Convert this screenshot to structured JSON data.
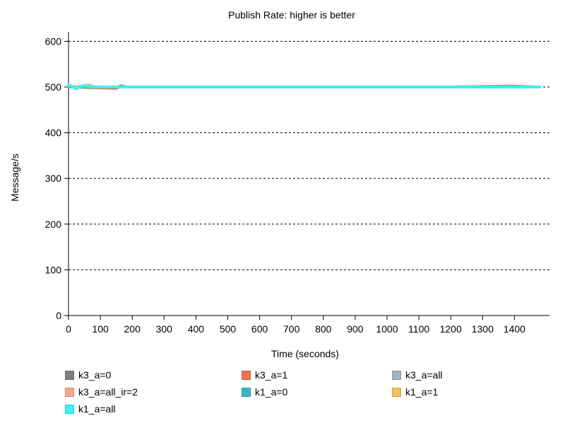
{
  "chart_data": {
    "type": "line",
    "title": "Publish Rate: higher is better",
    "xlabel": "Time (seconds)",
    "ylabel": "Message/s",
    "xlim": [
      0,
      1500
    ],
    "ylim": [
      0,
      620
    ],
    "x_ticks": [
      0,
      100,
      200,
      300,
      400,
      500,
      600,
      700,
      800,
      900,
      1000,
      1100,
      1200,
      1300,
      1400
    ],
    "y_ticks": [
      0,
      100,
      200,
      300,
      400,
      500,
      600
    ],
    "grid": "horizontal-dashed",
    "legend_position": "bottom",
    "series": [
      {
        "name": "k3_a=0",
        "color": "#7f7f7f",
        "points": [
          [
            0,
            503
          ],
          [
            20,
            500
          ],
          [
            40,
            501
          ],
          [
            60,
            499
          ],
          [
            100,
            500
          ],
          [
            200,
            500
          ],
          [
            400,
            500
          ],
          [
            600,
            500
          ],
          [
            800,
            500
          ],
          [
            1000,
            500
          ],
          [
            1200,
            500
          ],
          [
            1400,
            500
          ],
          [
            1480,
            500
          ]
        ]
      },
      {
        "name": "k3_a=1",
        "color": "#ef6f4f",
        "points": [
          [
            0,
            502
          ],
          [
            20,
            500
          ],
          [
            60,
            499
          ],
          [
            150,
            497
          ],
          [
            165,
            503
          ],
          [
            180,
            500
          ],
          [
            400,
            500
          ],
          [
            700,
            500
          ],
          [
            1000,
            500
          ],
          [
            1200,
            500
          ],
          [
            1390,
            502
          ],
          [
            1480,
            500
          ]
        ]
      },
      {
        "name": "k3_a=all",
        "color": "#9fb2be",
        "points": [
          [
            0,
            501
          ],
          [
            30,
            500
          ],
          [
            100,
            500
          ],
          [
            300,
            500
          ],
          [
            600,
            500
          ],
          [
            900,
            500
          ],
          [
            1200,
            500
          ],
          [
            1480,
            500
          ]
        ]
      },
      {
        "name": "k3_a=all_ir=2",
        "color": "#f4a58c",
        "points": [
          [
            0,
            500
          ],
          [
            40,
            500
          ],
          [
            100,
            500
          ],
          [
            400,
            500
          ],
          [
            700,
            500
          ],
          [
            1000,
            500
          ],
          [
            1300,
            500
          ],
          [
            1480,
            500
          ]
        ]
      },
      {
        "name": "k1_a=0",
        "color": "#3fb3bf",
        "points": [
          [
            0,
            501
          ],
          [
            50,
            500
          ],
          [
            150,
            500
          ],
          [
            450,
            500
          ],
          [
            750,
            500
          ],
          [
            1050,
            500
          ],
          [
            1350,
            500
          ],
          [
            1480,
            500
          ]
        ]
      },
      {
        "name": "k1_a=1",
        "color": "#f7bf5e",
        "points": [
          [
            0,
            504
          ],
          [
            20,
            500
          ],
          [
            45,
            502
          ],
          [
            65,
            505
          ],
          [
            80,
            500
          ],
          [
            200,
            500
          ],
          [
            500,
            500
          ],
          [
            800,
            500
          ],
          [
            1100,
            500
          ],
          [
            1400,
            500
          ],
          [
            1480,
            500
          ]
        ]
      },
      {
        "name": "k1_a=all",
        "color": "#36f2f2",
        "points": [
          [
            0,
            505
          ],
          [
            10,
            501
          ],
          [
            25,
            496
          ],
          [
            35,
            501
          ],
          [
            50,
            503
          ],
          [
            70,
            501
          ],
          [
            100,
            500
          ],
          [
            200,
            500
          ],
          [
            300,
            500
          ],
          [
            400,
            500
          ],
          [
            500,
            500
          ],
          [
            600,
            500
          ],
          [
            700,
            500
          ],
          [
            800,
            500
          ],
          [
            900,
            500
          ],
          [
            1000,
            500
          ],
          [
            1100,
            500
          ],
          [
            1200,
            500
          ],
          [
            1300,
            500
          ],
          [
            1400,
            500
          ],
          [
            1480,
            500
          ]
        ]
      }
    ]
  }
}
